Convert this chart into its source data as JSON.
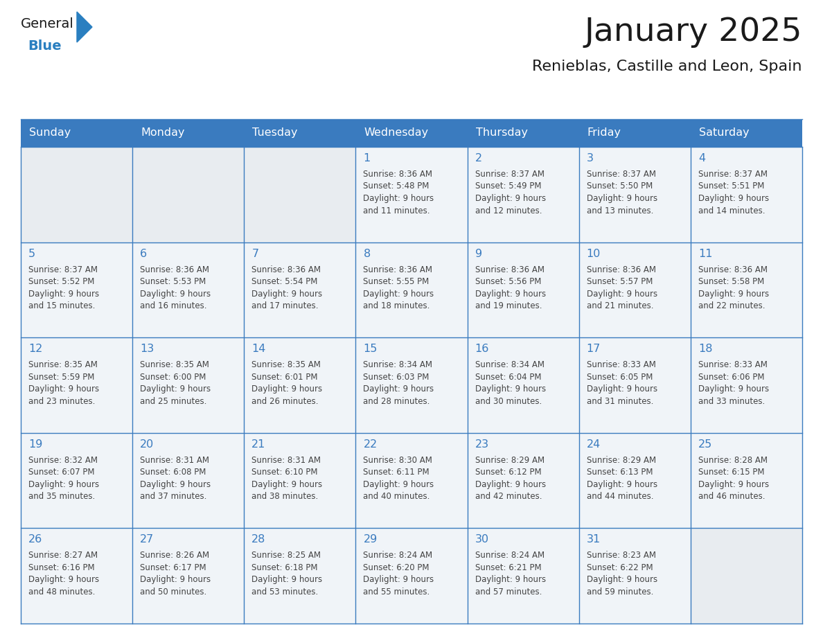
{
  "title": "January 2025",
  "subtitle": "Renieblas, Castille and Leon, Spain",
  "header_bg_color": "#3a7bbf",
  "header_text_color": "#ffffff",
  "cell_bg_color": "#f0f4f8",
  "cell_bg_empty": "#e8ecf0",
  "grid_color": "#3a7bbf",
  "grid_linewidth": 1.0,
  "day_names": [
    "Sunday",
    "Monday",
    "Tuesday",
    "Wednesday",
    "Thursday",
    "Friday",
    "Saturday"
  ],
  "title_color": "#1a1a1a",
  "subtitle_color": "#1a1a1a",
  "date_color": "#3a7bbf",
  "text_color": "#444444",
  "logo_general_color": "#1a1a1a",
  "logo_blue_color": "#2a7fc0",
  "fig_width": 11.88,
  "fig_height": 9.18,
  "dpi": 100,
  "weeks": [
    [
      {
        "day": 0,
        "text": ""
      },
      {
        "day": 0,
        "text": ""
      },
      {
        "day": 0,
        "text": ""
      },
      {
        "day": 1,
        "text": "Sunrise: 8:36 AM\nSunset: 5:48 PM\nDaylight: 9 hours\nand 11 minutes."
      },
      {
        "day": 2,
        "text": "Sunrise: 8:37 AM\nSunset: 5:49 PM\nDaylight: 9 hours\nand 12 minutes."
      },
      {
        "day": 3,
        "text": "Sunrise: 8:37 AM\nSunset: 5:50 PM\nDaylight: 9 hours\nand 13 minutes."
      },
      {
        "day": 4,
        "text": "Sunrise: 8:37 AM\nSunset: 5:51 PM\nDaylight: 9 hours\nand 14 minutes."
      }
    ],
    [
      {
        "day": 5,
        "text": "Sunrise: 8:37 AM\nSunset: 5:52 PM\nDaylight: 9 hours\nand 15 minutes."
      },
      {
        "day": 6,
        "text": "Sunrise: 8:36 AM\nSunset: 5:53 PM\nDaylight: 9 hours\nand 16 minutes."
      },
      {
        "day": 7,
        "text": "Sunrise: 8:36 AM\nSunset: 5:54 PM\nDaylight: 9 hours\nand 17 minutes."
      },
      {
        "day": 8,
        "text": "Sunrise: 8:36 AM\nSunset: 5:55 PM\nDaylight: 9 hours\nand 18 minutes."
      },
      {
        "day": 9,
        "text": "Sunrise: 8:36 AM\nSunset: 5:56 PM\nDaylight: 9 hours\nand 19 minutes."
      },
      {
        "day": 10,
        "text": "Sunrise: 8:36 AM\nSunset: 5:57 PM\nDaylight: 9 hours\nand 21 minutes."
      },
      {
        "day": 11,
        "text": "Sunrise: 8:36 AM\nSunset: 5:58 PM\nDaylight: 9 hours\nand 22 minutes."
      }
    ],
    [
      {
        "day": 12,
        "text": "Sunrise: 8:35 AM\nSunset: 5:59 PM\nDaylight: 9 hours\nand 23 minutes."
      },
      {
        "day": 13,
        "text": "Sunrise: 8:35 AM\nSunset: 6:00 PM\nDaylight: 9 hours\nand 25 minutes."
      },
      {
        "day": 14,
        "text": "Sunrise: 8:35 AM\nSunset: 6:01 PM\nDaylight: 9 hours\nand 26 minutes."
      },
      {
        "day": 15,
        "text": "Sunrise: 8:34 AM\nSunset: 6:03 PM\nDaylight: 9 hours\nand 28 minutes."
      },
      {
        "day": 16,
        "text": "Sunrise: 8:34 AM\nSunset: 6:04 PM\nDaylight: 9 hours\nand 30 minutes."
      },
      {
        "day": 17,
        "text": "Sunrise: 8:33 AM\nSunset: 6:05 PM\nDaylight: 9 hours\nand 31 minutes."
      },
      {
        "day": 18,
        "text": "Sunrise: 8:33 AM\nSunset: 6:06 PM\nDaylight: 9 hours\nand 33 minutes."
      }
    ],
    [
      {
        "day": 19,
        "text": "Sunrise: 8:32 AM\nSunset: 6:07 PM\nDaylight: 9 hours\nand 35 minutes."
      },
      {
        "day": 20,
        "text": "Sunrise: 8:31 AM\nSunset: 6:08 PM\nDaylight: 9 hours\nand 37 minutes."
      },
      {
        "day": 21,
        "text": "Sunrise: 8:31 AM\nSunset: 6:10 PM\nDaylight: 9 hours\nand 38 minutes."
      },
      {
        "day": 22,
        "text": "Sunrise: 8:30 AM\nSunset: 6:11 PM\nDaylight: 9 hours\nand 40 minutes."
      },
      {
        "day": 23,
        "text": "Sunrise: 8:29 AM\nSunset: 6:12 PM\nDaylight: 9 hours\nand 42 minutes."
      },
      {
        "day": 24,
        "text": "Sunrise: 8:29 AM\nSunset: 6:13 PM\nDaylight: 9 hours\nand 44 minutes."
      },
      {
        "day": 25,
        "text": "Sunrise: 8:28 AM\nSunset: 6:15 PM\nDaylight: 9 hours\nand 46 minutes."
      }
    ],
    [
      {
        "day": 26,
        "text": "Sunrise: 8:27 AM\nSunset: 6:16 PM\nDaylight: 9 hours\nand 48 minutes."
      },
      {
        "day": 27,
        "text": "Sunrise: 8:26 AM\nSunset: 6:17 PM\nDaylight: 9 hours\nand 50 minutes."
      },
      {
        "day": 28,
        "text": "Sunrise: 8:25 AM\nSunset: 6:18 PM\nDaylight: 9 hours\nand 53 minutes."
      },
      {
        "day": 29,
        "text": "Sunrise: 8:24 AM\nSunset: 6:20 PM\nDaylight: 9 hours\nand 55 minutes."
      },
      {
        "day": 30,
        "text": "Sunrise: 8:24 AM\nSunset: 6:21 PM\nDaylight: 9 hours\nand 57 minutes."
      },
      {
        "day": 31,
        "text": "Sunrise: 8:23 AM\nSunset: 6:22 PM\nDaylight: 9 hours\nand 59 minutes."
      },
      {
        "day": 0,
        "text": ""
      }
    ]
  ]
}
